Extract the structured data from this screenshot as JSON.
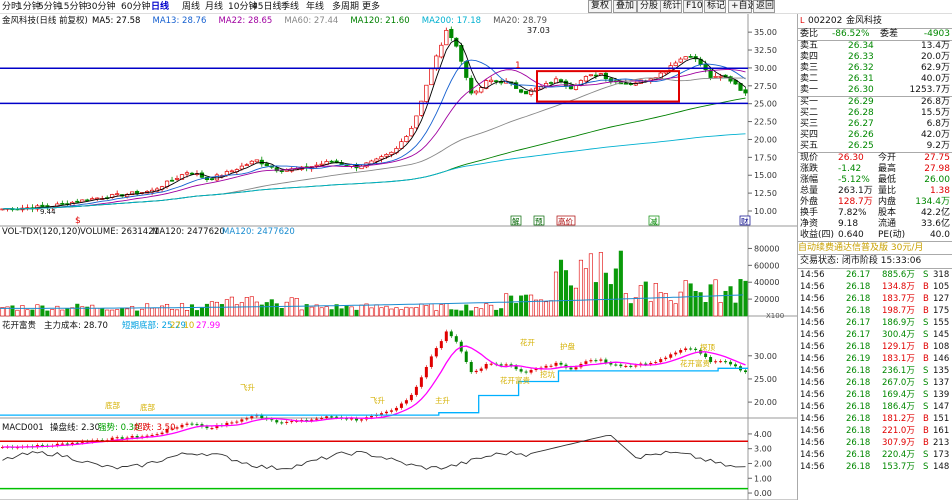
{
  "toolbar": {
    "periods": [
      "分时",
      "1分钟",
      "5分钟",
      "15分钟",
      "30分钟",
      "60分钟",
      "日线",
      "周线",
      "月线",
      "10分钟",
      "45日线",
      "季线",
      "年线",
      "多周期",
      "更多"
    ],
    "active_period": "日线",
    "buttons": [
      "复权",
      "叠加",
      "分股",
      "统计",
      "F10",
      "标记",
      "+自选",
      "返回"
    ]
  },
  "main": {
    "title": "金风科技(日线 前复权)",
    "ma_legend": [
      {
        "text": "MA5: 27.58",
        "color": "#000000"
      },
      {
        "text": "MA13: 28.76",
        "color": "#1560d0"
      },
      {
        "text": "MA22: 28.65",
        "color": "#a000a0"
      },
      {
        "text": "MA60: 27.44",
        "color": "#888888"
      },
      {
        "text": "MA120: 21.60",
        "color": "#008000"
      },
      {
        "text": "MA200: 17.18",
        "color": "#00b0d0"
      },
      {
        "text": "MA20: 28.79",
        "color": "#555555"
      }
    ],
    "y_ticks": [
      "35.00",
      "32.50",
      "30.00",
      "27.50",
      "25.00",
      "22.50",
      "20.00",
      "17.50",
      "15.00",
      "12.50",
      "10.00"
    ],
    "peak_label": "37.03",
    "low_label": "9.44",
    "markers": [
      {
        "text": "$",
        "color": "#e00000"
      },
      {
        "text": "解",
        "color": "#006600"
      },
      {
        "text": "预",
        "color": "#006600"
      },
      {
        "text": "高价",
        "color": "#aa0000"
      },
      {
        "text": "减",
        "color": "#008800"
      },
      {
        "text": "财",
        "color": "#000088"
      }
    ],
    "note_1": "1"
  },
  "volume_panel": {
    "title": "VOL-TDX(120,120)",
    "volume": "VOLUME: 2631421",
    "ma120": "MA120: 2477620",
    "ma120b": "MA120: 2477620",
    "y_ticks": [
      "80000",
      "60000",
      "40000",
      "20000"
    ],
    "unit": "X100"
  },
  "capital_panel": {
    "title": "花开富贵",
    "main_cost": "主力成本: 28.70",
    "short_base": "短期底部: 25.29",
    "v2": "27.10",
    "v3": "27.99",
    "y_ticks": [
      "30.00",
      "25.00",
      "20.00"
    ],
    "annotations": [
      "底部",
      "底部",
      "飞升",
      "飞升",
      "主升",
      "花开富贵",
      "花开",
      "挖坑",
      "护盘",
      "探顶",
      "花开富贵"
    ]
  },
  "macd_panel": {
    "title": "MACD001",
    "line1": "操盘线: 2.30",
    "line2": "强势: 0.30",
    "line3": "超跌: 3.50",
    "y_ticks": [
      "4.00",
      "3.00",
      "2.00",
      "1.00",
      "0.00"
    ]
  },
  "quote": {
    "code": "002202",
    "name": "金风科技",
    "commission_ratio_label": "委比",
    "commission_ratio": "-86.52%",
    "commission_diff_label": "委差",
    "commission_diff": "-4903",
    "asks": [
      {
        "label": "卖五",
        "price": "26.34",
        "vol": "13.4万"
      },
      {
        "label": "卖四",
        "price": "26.33",
        "vol": "20.0万"
      },
      {
        "label": "卖三",
        "price": "26.32",
        "vol": "62.9万"
      },
      {
        "label": "卖二",
        "price": "26.31",
        "vol": "40.0万"
      },
      {
        "label": "卖一",
        "price": "26.30",
        "vol": "1253.7万"
      }
    ],
    "bids": [
      {
        "label": "买一",
        "price": "26.29",
        "vol": "26.8万"
      },
      {
        "label": "买二",
        "price": "26.28",
        "vol": "15.5万"
      },
      {
        "label": "买三",
        "price": "26.27",
        "vol": "6.8万"
      },
      {
        "label": "买四",
        "price": "26.26",
        "vol": "42.0万"
      },
      {
        "label": "买五",
        "price": "26.25",
        "vol": "9.2万"
      }
    ],
    "stats": [
      {
        "l1": "现价",
        "v1": "26.30",
        "c1": "red",
        "l2": "今开",
        "v2": "27.75",
        "c2": "red"
      },
      {
        "l1": "涨跌",
        "v1": "-1.42",
        "c1": "green",
        "l2": "最高",
        "v2": "27.98",
        "c2": "red"
      },
      {
        "l1": "涨幅",
        "v1": "-5.12%",
        "c1": "green",
        "l2": "最低",
        "v2": "26.00",
        "c2": "green"
      },
      {
        "l1": "总量",
        "v1": "263.1万",
        "c1": "dark",
        "l2": "量比",
        "v2": "1.38",
        "c2": "red"
      },
      {
        "l1": "外盘",
        "v1": "128.7万",
        "c1": "red",
        "l2": "内盘",
        "v2": "134.4万",
        "c2": "green"
      },
      {
        "l1": "换手",
        "v1": "7.82%",
        "c1": "dark",
        "l2": "股本",
        "v2": "42.2亿",
        "c2": "dark"
      },
      {
        "l1": "净资",
        "v1": "9.18",
        "c1": "dark",
        "l2": "流通",
        "v2": "33.6亿",
        "c2": "dark"
      },
      {
        "l1": "收益(四)",
        "v1": "0.640",
        "c1": "dark",
        "l2": "PE(动)",
        "v2": "40.0",
        "c2": "dark"
      }
    ],
    "ad": "自动续费通达信普及版 30元/月",
    "status": "交易状态: 闭市阶段 15:33:06"
  },
  "ticks": [
    {
      "t": "14:56",
      "p": "26.17",
      "v": "885.6万",
      "s": "S",
      "n": "318"
    },
    {
      "t": "14:56",
      "p": "26.18",
      "v": "134.8万",
      "s": "B",
      "n": "105"
    },
    {
      "t": "14:56",
      "p": "26.18",
      "v": "183.7万",
      "s": "B",
      "n": "127"
    },
    {
      "t": "14:56",
      "p": "26.18",
      "v": "198.7万",
      "s": "B",
      "n": "175"
    },
    {
      "t": "14:56",
      "p": "26.17",
      "v": "186.9万",
      "s": "S",
      "n": "155"
    },
    {
      "t": "14:56",
      "p": "26.17",
      "v": "300.4万",
      "s": "S",
      "n": "145"
    },
    {
      "t": "14:56",
      "p": "26.18",
      "v": "129.1万",
      "s": "B",
      "n": "108"
    },
    {
      "t": "14:56",
      "p": "26.19",
      "v": "183.1万",
      "s": "B",
      "n": "146"
    },
    {
      "t": "14:56",
      "p": "26.18",
      "v": "236.1万",
      "s": "S",
      "n": "135"
    },
    {
      "t": "14:56",
      "p": "26.18",
      "v": "267.0万",
      "s": "S",
      "n": "137"
    },
    {
      "t": "14:56",
      "p": "26.18",
      "v": "169.4万",
      "s": "S",
      "n": "139"
    },
    {
      "t": "14:56",
      "p": "26.18",
      "v": "186.4万",
      "s": "S",
      "n": "147"
    },
    {
      "t": "14:56",
      "p": "26.18",
      "v": "181.2万",
      "s": "B",
      "n": "151"
    },
    {
      "t": "14:56",
      "p": "26.18",
      "v": "221.0万",
      "s": "B",
      "n": "161"
    },
    {
      "t": "14:56",
      "p": "26.18",
      "v": "307.9万",
      "s": "B",
      "n": "213"
    },
    {
      "t": "14:56",
      "p": "26.18",
      "v": "220.4万",
      "s": "S",
      "n": "173"
    },
    {
      "t": "14:56",
      "p": "26.18",
      "v": "153.7万",
      "s": "S",
      "n": "148"
    }
  ]
}
